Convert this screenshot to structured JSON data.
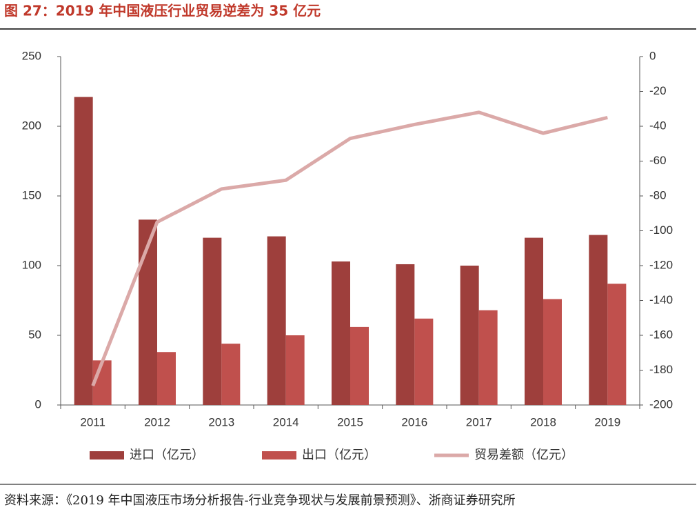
{
  "title": "图 27：2019 年中国液压行业贸易逆差为 35 亿元",
  "source": "资料来源：《2019 年中国液压市场分析报告-行业竞争现状与发展前景预测》、浙商证券研究所",
  "chart_data": {
    "type": "bar",
    "categories": [
      "2011",
      "2012",
      "2013",
      "2014",
      "2015",
      "2016",
      "2017",
      "2018",
      "2019"
    ],
    "series": [
      {
        "name": "进口（亿元）",
        "color": "#9e3f3c",
        "values": [
          221,
          133,
          120,
          121,
          103,
          101,
          100,
          120,
          122
        ]
      },
      {
        "name": "出口（亿元）",
        "color": "#c0504d",
        "values": [
          32,
          38,
          44,
          50,
          56,
          62,
          68,
          76,
          87
        ]
      },
      {
        "name": "贸易差额（亿元）",
        "color": "#dba9a8",
        "type": "line",
        "axis": "y2",
        "values": [
          -189,
          -95,
          -76,
          -71,
          -47,
          -39,
          -32,
          -44,
          -35
        ]
      }
    ],
    "ylim": [
      0,
      250
    ],
    "yticks": [
      0,
      50,
      100,
      150,
      200,
      250
    ],
    "y2lim": [
      -200,
      0
    ],
    "y2ticks": [
      -200,
      -180,
      -160,
      -140,
      -120,
      -100,
      -80,
      -60,
      -40,
      -20,
      0
    ]
  }
}
